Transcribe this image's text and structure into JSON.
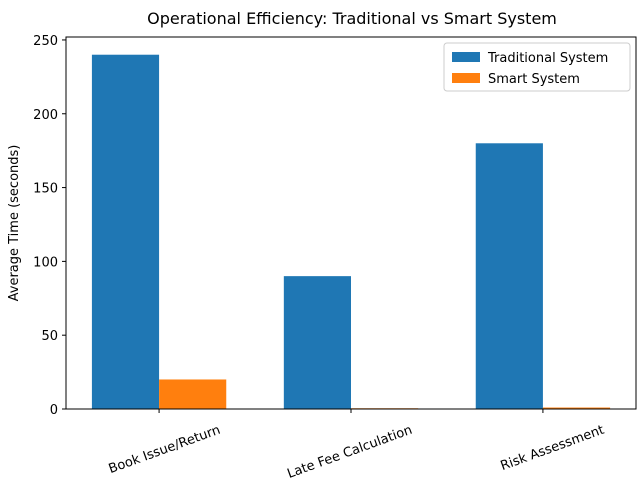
{
  "chart_data": {
    "type": "bar",
    "title": "Operational Efficiency: Traditional vs Smart System",
    "y_label": "Average Time (seconds)",
    "categories": [
      "Book Issue/Return",
      "Late Fee Calculation",
      "Risk Assessment"
    ],
    "series": [
      {
        "name": "Traditional System",
        "color": "#1f77b4",
        "values": [
          240,
          90,
          180
        ]
      },
      {
        "name": "Smart System",
        "color": "#ff7f0e",
        "values": [
          20,
          0.5,
          1
        ]
      }
    ],
    "ylim": [
      0,
      252
    ],
    "yticks": [
      0,
      50,
      100,
      150,
      200,
      250
    ],
    "legend": "upper right"
  }
}
